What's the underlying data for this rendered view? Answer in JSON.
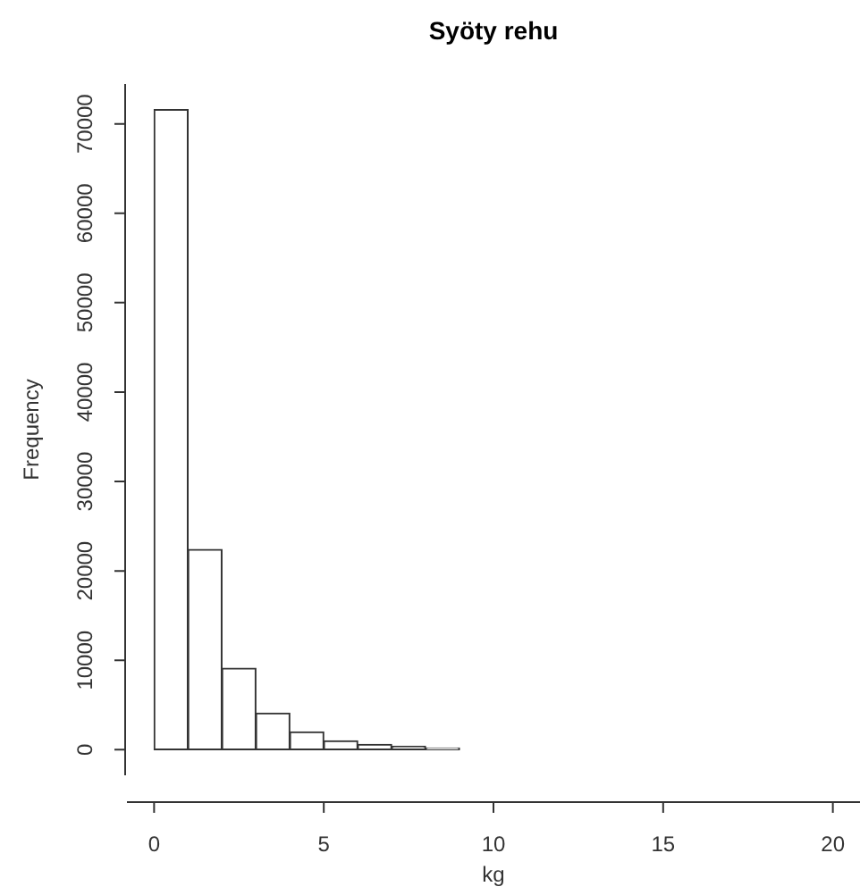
{
  "chart_data": {
    "type": "histogram",
    "title": "Syöty rehu",
    "xlabel": "kg",
    "ylabel": "Frequency",
    "bins": [
      0,
      1,
      2,
      3,
      4,
      5,
      6,
      7,
      8,
      9,
      10,
      11,
      12,
      13,
      14,
      15,
      16,
      17,
      18,
      19,
      20
    ],
    "values": [
      71600,
      22400,
      9100,
      4100,
      2000,
      1000,
      600,
      400,
      200,
      0,
      0,
      0,
      0,
      0,
      0,
      0,
      0,
      0,
      0,
      0
    ],
    "color": "#ffffff",
    "xlim": [
      -0.8,
      20.8
    ],
    "xticks": [
      0,
      5,
      10,
      15,
      20
    ],
    "ylim": [
      -2864,
      74464
    ],
    "yticks": [
      0,
      10000,
      20000,
      30000,
      40000,
      50000,
      60000,
      70000
    ],
    "legend": false
  }
}
